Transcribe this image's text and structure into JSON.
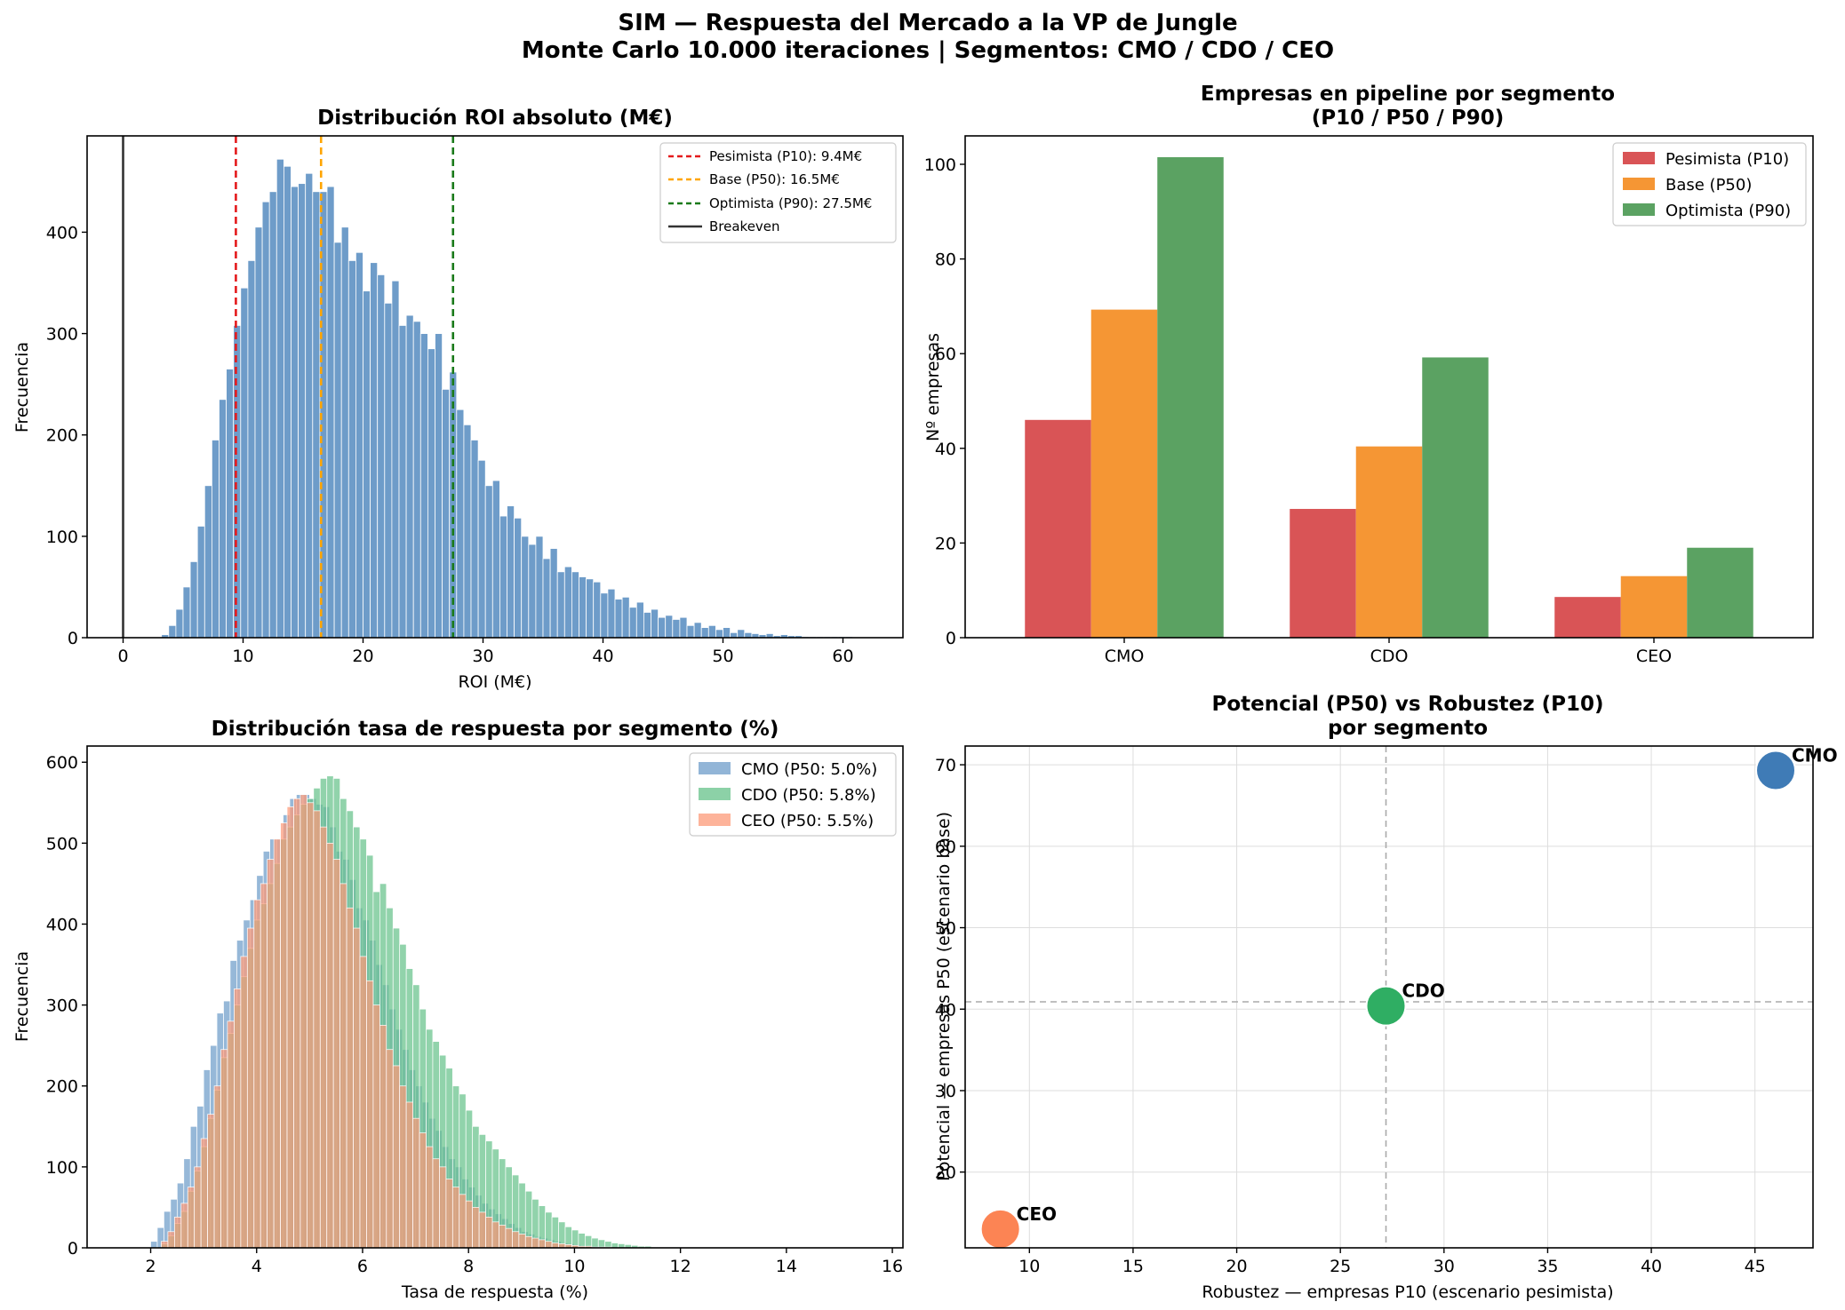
{
  "figure": {
    "title_line1": "SIM — Respuesta del Mercado a la VP de Jungle",
    "title_line2": "Monte Carlo 10.000 iteraciones | Segmentos: CMO / CDO / CEO"
  },
  "chart_data": [
    {
      "type": "histogram",
      "title": "Distribución ROI absoluto (M€)",
      "xlabel": "ROI (M€)",
      "ylabel": "Frecuencia",
      "xlim": [
        -3,
        65
      ],
      "ylim": [
        0,
        495
      ],
      "xticks": [
        0,
        10,
        20,
        30,
        40,
        50,
        60
      ],
      "yticks": [
        0,
        100,
        200,
        300,
        400
      ],
      "bin_start": 3.2,
      "bin_width": 0.6,
      "color": "#6e9cc9",
      "counts": [
        3,
        12,
        28,
        50,
        75,
        110,
        150,
        195,
        235,
        265,
        308,
        345,
        372,
        405,
        430,
        440,
        472,
        465,
        445,
        448,
        458,
        440,
        440,
        445,
        390,
        405,
        372,
        380,
        342,
        370,
        358,
        330,
        352,
        308,
        318,
        312,
        300,
        285,
        300,
        245,
        262,
        225,
        210,
        195,
        175,
        150,
        155,
        120,
        130,
        118,
        100,
        92,
        100,
        78,
        88,
        65,
        70,
        65,
        60,
        58,
        55,
        44,
        48,
        38,
        40,
        30,
        35,
        25,
        28,
        20,
        22,
        18,
        20,
        12,
        15,
        10,
        12,
        8,
        10,
        5,
        8,
        5,
        4,
        3,
        4,
        2,
        3,
        2,
        2,
        1,
        1,
        1,
        1,
        1,
        1,
        1
      ],
      "vlines": [
        {
          "label": "Pesimista (P10): 9.4M€",
          "x": 9.4,
          "color": "#e41a1c",
          "style": "dashed"
        },
        {
          "label": "Base (P50): 16.5M€",
          "x": 16.5,
          "color": "#ffa500",
          "style": "dashed"
        },
        {
          "label": "Optimista (P90): 27.5M€",
          "x": 27.5,
          "color": "#1a7a1a",
          "style": "dashed"
        },
        {
          "label": "Breakeven",
          "x": 0,
          "color": "#333333",
          "style": "solid"
        }
      ],
      "legend": "top-right"
    },
    {
      "type": "bar",
      "title_line1": "Empresas en pipeline por segmento",
      "title_line2": "(P10 / P50 / P90)",
      "ylabel": "Nº empresas",
      "categories": [
        "CMO",
        "CDO",
        "CEO"
      ],
      "ylim": [
        0,
        106
      ],
      "yticks": [
        0,
        20,
        40,
        60,
        80,
        100
      ],
      "series": [
        {
          "name": "Pesimista (P10)",
          "color": "#d95456",
          "values": [
            46,
            27.2,
            8.6
          ]
        },
        {
          "name": "Base (P50)",
          "color": "#f59634",
          "values": [
            69.3,
            40.4,
            13
          ]
        },
        {
          "name": "Optimista (P90)",
          "color": "#5ba262",
          "values": [
            101.5,
            59.2,
            19
          ]
        }
      ],
      "legend": "top-right"
    },
    {
      "type": "histogram",
      "title": "Distribución tasa de respuesta por segmento (%)",
      "xlabel": "Tasa de respuesta (%)",
      "ylabel": "Frecuencia",
      "xlim": [
        0.8,
        16.2
      ],
      "ylim": [
        0,
        620
      ],
      "xticks": [
        2,
        4,
        6,
        8,
        10,
        12,
        14,
        16
      ],
      "yticks": [
        0,
        100,
        200,
        300,
        400,
        500,
        600
      ],
      "bin_width": 0.125,
      "series": [
        {
          "name": "CMO (P50: 5.0%)",
          "color": "#6e9cc9",
          "bin_start": 2.0,
          "counts": [
            8,
            25,
            45,
            60,
            80,
            110,
            150,
            175,
            220,
            250,
            290,
            305,
            355,
            380,
            405,
            430,
            460,
            490,
            505,
            505,
            535,
            555,
            560,
            560,
            555,
            548,
            545,
            520,
            490,
            480,
            455,
            420,
            405,
            380,
            350,
            325,
            295,
            270,
            245,
            220,
            200,
            180,
            160,
            145,
            125,
            110,
            100,
            85,
            75,
            65,
            55,
            48,
            42,
            36,
            30,
            25,
            20,
            17,
            14,
            12,
            10,
            8,
            6,
            5,
            4,
            3,
            2,
            2,
            1,
            1,
            1,
            1
          ]
        },
        {
          "name": "CDO (P50: 5.8%)",
          "color": "#66c28a",
          "bin_start": 2.2,
          "counts": [
            5,
            15,
            30,
            45,
            70,
            95,
            125,
            160,
            195,
            235,
            265,
            300,
            335,
            370,
            405,
            425,
            450,
            475,
            505,
            520,
            535,
            548,
            555,
            568,
            580,
            583,
            580,
            555,
            540,
            520,
            505,
            485,
            440,
            450,
            420,
            395,
            375,
            345,
            325,
            295,
            270,
            255,
            238,
            222,
            200,
            190,
            170,
            150,
            140,
            132,
            122,
            110,
            100,
            90,
            80,
            70,
            60,
            52,
            44,
            38,
            32,
            26,
            22,
            18,
            15,
            12,
            10,
            8,
            6,
            5,
            4,
            3,
            2,
            2,
            1,
            1,
            1,
            1
          ]
        },
        {
          "name": "CEO (P50: 5.5%)",
          "color": "#fc9a78",
          "bin_start": 2.2,
          "counts": [
            8,
            20,
            38,
            55,
            75,
            100,
            135,
            165,
            200,
            245,
            280,
            320,
            360,
            395,
            430,
            450,
            480,
            505,
            525,
            545,
            555,
            560,
            550,
            540,
            520,
            500,
            480,
            450,
            420,
            395,
            360,
            330,
            300,
            275,
            245,
            225,
            200,
            180,
            160,
            142,
            125,
            110,
            100,
            85,
            75,
            66,
            58,
            50,
            44,
            38,
            32,
            28,
            24,
            20,
            17,
            14,
            12,
            10,
            8,
            6,
            5,
            4,
            3,
            2,
            2,
            1,
            1,
            1
          ]
        }
      ],
      "legend": "top-right"
    },
    {
      "type": "scatter",
      "title_line1": "Potencial (P50) vs Robustez (P10)",
      "title_line2": "por segmento",
      "xlabel": "Robustez — empresas P10 (escenario pesimista)",
      "ylabel": "Potencial — empresas P50 (escenario base)",
      "xlim": [
        6.9,
        47.8
      ],
      "ylim": [
        10.7,
        72.3
      ],
      "xticks": [
        10,
        15,
        20,
        25,
        30,
        35,
        40,
        45
      ],
      "yticks": [
        20,
        30,
        40,
        50,
        60,
        70
      ],
      "grid": true,
      "ref_x": 27.2,
      "ref_y": 40.9,
      "points": [
        {
          "label": "CMO",
          "x": 46.0,
          "y": 69.3,
          "color": "#3f7bb6"
        },
        {
          "label": "CDO",
          "x": 27.2,
          "y": 40.4,
          "color": "#2fae63"
        },
        {
          "label": "CEO",
          "x": 8.6,
          "y": 13.0,
          "color": "#fc8454"
        }
      ]
    }
  ]
}
